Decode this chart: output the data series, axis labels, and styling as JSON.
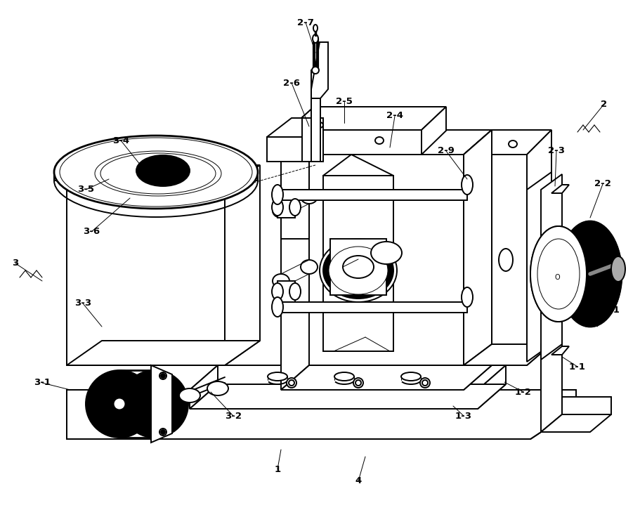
{
  "bg": "#ffffff",
  "lc": "#000000",
  "lw": 1.4,
  "lw_thin": 0.7,
  "lw_thick": 2.0,
  "fig_w": 9.12,
  "fig_h": 7.36,
  "dpi": 100
}
